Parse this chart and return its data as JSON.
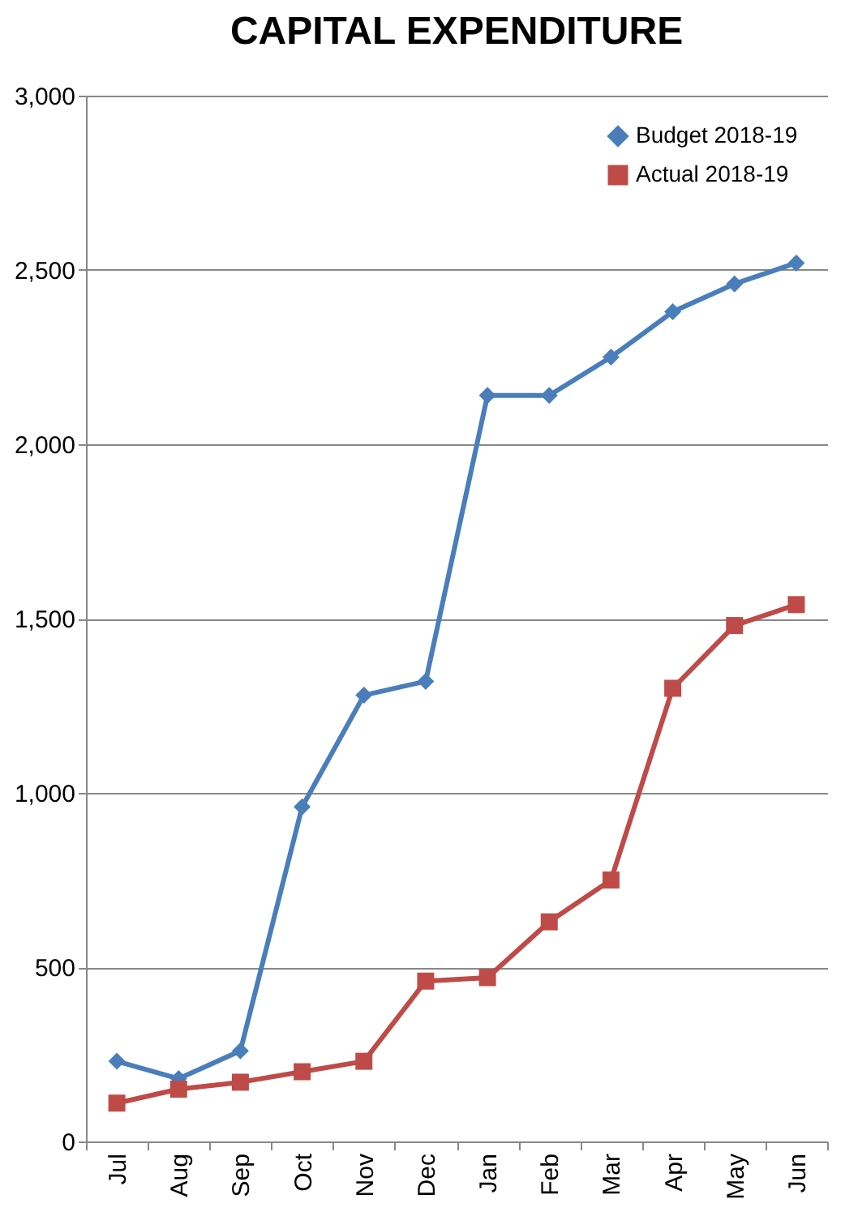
{
  "chart_data": {
    "type": "line",
    "title": "CAPITAL EXPENDITURE",
    "categories": [
      "Jul",
      "Aug",
      "Sep",
      "Oct",
      "Nov",
      "Dec",
      "Jan",
      "Feb",
      "Mar",
      "Apr",
      "May",
      "Jun"
    ],
    "series": [
      {
        "name": "Budget 2018-19",
        "color": "#4a7ebb",
        "marker": "diamond",
        "values": [
          230,
          180,
          260,
          960,
          1280,
          1320,
          2140,
          2140,
          2250,
          2380,
          2460,
          2520
        ]
      },
      {
        "name": "Actual 2018-19",
        "color": "#be4b48",
        "marker": "square",
        "values": [
          110,
          150,
          170,
          200,
          230,
          460,
          470,
          630,
          750,
          1300,
          1480,
          1540
        ]
      }
    ],
    "ylim": [
      0,
      3000
    ],
    "yticks": [
      {
        "value": 0,
        "label": "0"
      },
      {
        "value": 500,
        "label": "500"
      },
      {
        "value": 1000,
        "label": "1,000"
      },
      {
        "value": 1500,
        "label": "1,500"
      },
      {
        "value": 2000,
        "label": "2,000"
      },
      {
        "value": 2500,
        "label": "2,500"
      },
      {
        "value": 3000,
        "label": "3,000"
      }
    ],
    "grid": "y",
    "legend": "top right"
  }
}
